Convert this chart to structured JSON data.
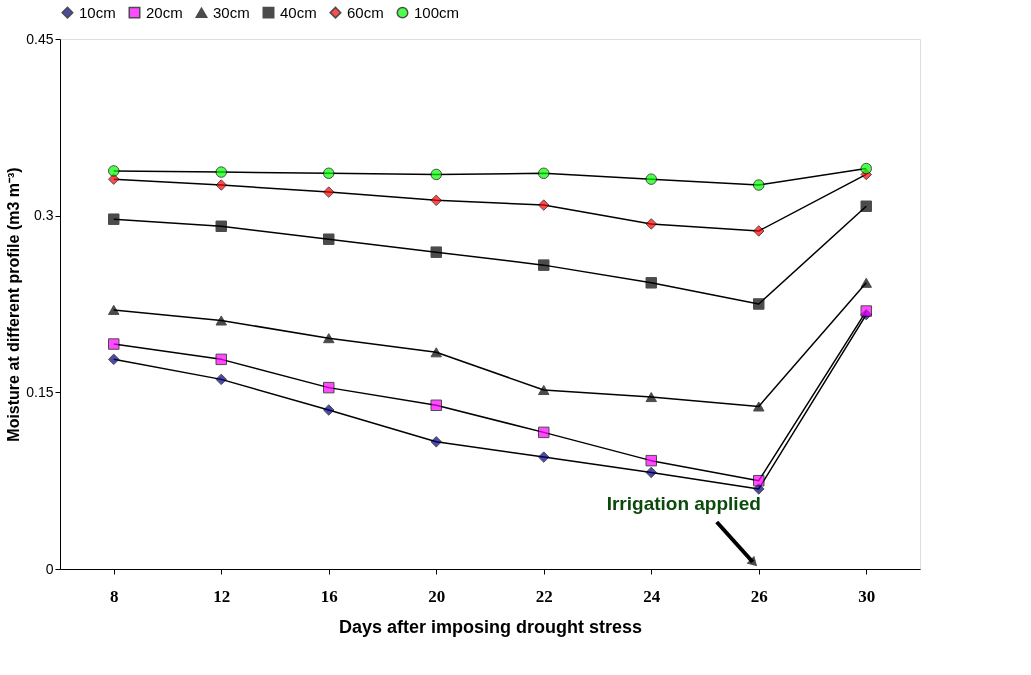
{
  "chart_data": {
    "type": "line",
    "xlabel": "Days after imposing drought stress",
    "ylabel": "Moisture at different profile (m3 m⁻³)",
    "categories": [
      "8",
      "12",
      "16",
      "20",
      "22",
      "24",
      "26",
      "30"
    ],
    "series": [
      {
        "name": "10cm",
        "color": "#000080",
        "marker": "diamond",
        "values": [
          0.178,
          0.161,
          0.135,
          0.108,
          0.095,
          0.082,
          0.068,
          0.216
        ]
      },
      {
        "name": "20cm",
        "color": "#ff00ff",
        "marker": "square",
        "values": [
          0.191,
          0.178,
          0.154,
          0.139,
          0.116,
          0.092,
          0.075,
          0.219
        ]
      },
      {
        "name": "30cm",
        "color": "#000000",
        "marker": "triangle",
        "values": [
          0.22,
          0.211,
          0.196,
          0.184,
          0.152,
          0.146,
          0.138,
          0.243
        ]
      },
      {
        "name": "40cm",
        "color": "#000000",
        "marker": "square",
        "values": [
          0.297,
          0.291,
          0.28,
          0.269,
          0.258,
          0.243,
          0.225,
          0.308
        ]
      },
      {
        "name": "60cm",
        "color": "#ff0000",
        "marker": "diamond",
        "values": [
          0.331,
          0.326,
          0.32,
          0.313,
          0.309,
          0.293,
          0.287,
          0.335
        ]
      },
      {
        "name": "100cm",
        "color": "#00ff00",
        "marker": "circle",
        "values": [
          0.338,
          0.337,
          0.336,
          0.335,
          0.336,
          0.331,
          0.326,
          0.34
        ]
      }
    ],
    "ylim": [
      0,
      0.45
    ],
    "yticks": [
      0,
      0.15,
      0.3,
      0.45
    ],
    "grid": false,
    "legend": "top",
    "line_style": "solid",
    "annotations": [
      "Irrigation applied"
    ]
  }
}
